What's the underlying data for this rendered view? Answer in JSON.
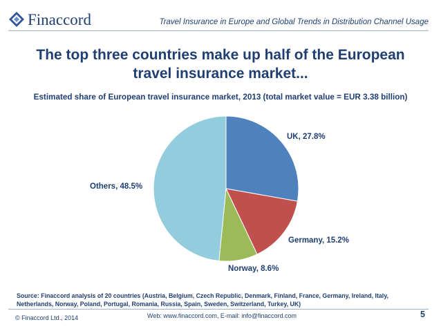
{
  "header": {
    "brand": "Finaccord",
    "title": "Travel Insurance in Europe and Global Trends in Distribution Channel Usage"
  },
  "slide": {
    "title": "The top three countries make up half of the European travel insurance market...",
    "subtitle": "Estimated share of European travel insurance market, 2013 (total market value = EUR 3.38 billion)"
  },
  "chart_data": {
    "type": "pie",
    "title": "",
    "start": "12 o'clock, clockwise",
    "slices": [
      {
        "name": "UK",
        "value": 27.8,
        "label": "UK, 27.8%",
        "color": "#4f81bd"
      },
      {
        "name": "Germany",
        "value": 15.2,
        "label": "Germany, 15.2%",
        "color": "#c0504d"
      },
      {
        "name": "Norway",
        "value": 8.6,
        "label": "Norway, 8.6%",
        "color": "#9bbb59"
      },
      {
        "name": "Others",
        "value": 48.5,
        "label": "Others, 48.5%",
        "color": "#93cddd"
      }
    ]
  },
  "source": {
    "text": "Source: Finaccord analysis of 20 countries (Austria, Belgium, Czech Republic, Denmark, Finland, France, Germany, Ireland, Italy, Netherlands, Norway, Poland, Portugal, Romania, Russia, Spain, Sweden, Switzerland, Turkey, UK)"
  },
  "footer": {
    "copyright": "© Finaccord Ltd., 2014",
    "contact": "Web: www.finaccord.com, E-mail: info@finaccord.com",
    "page": "5"
  },
  "colors": {
    "brand_navy": "#1f3f73",
    "rule": "#9fb3cf"
  }
}
